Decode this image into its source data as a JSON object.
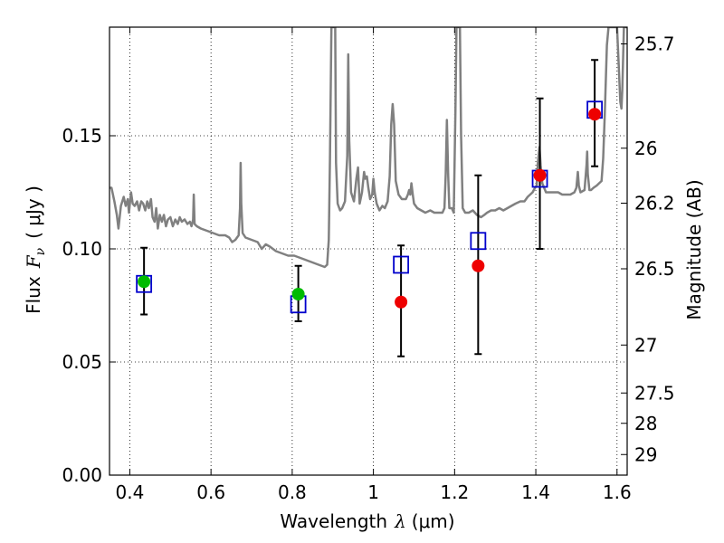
{
  "chart_data": {
    "type": "scatter",
    "xlabel": "Wavelength",
    "xlabel_symbol": "λ",
    "xlabel_unit": "(μm)",
    "ylabel": "Flux",
    "ylabel_symbol": "F",
    "ylabel_sub": "ν",
    "ylabel_unit": "( μJy )",
    "y2label": "Magnitude (AB)",
    "xlim": [
      0.35,
      1.625
    ],
    "ylim": [
      0.0,
      0.198
    ],
    "grid": true,
    "x_ticks": [
      0.4,
      0.6,
      0.8,
      1.0,
      1.2,
      1.4,
      1.6
    ],
    "x_tick_labels": [
      "0.4",
      "0.6",
      "0.8",
      "1",
      "1.2",
      "1.4",
      "1.6"
    ],
    "y_ticks": [
      0.0,
      0.05,
      0.1,
      0.15
    ],
    "y_tick_labels": [
      "0.00",
      "0.05",
      "0.10",
      "0.15"
    ],
    "y2_ticks": [
      {
        "label": "25.7",
        "flux": 0.1906
      },
      {
        "label": "26",
        "flux": 0.1445
      },
      {
        "label": "26.2",
        "flux": 0.1202
      },
      {
        "label": "26.5",
        "flux": 0.0912
      },
      {
        "label": "27",
        "flux": 0.0575
      },
      {
        "label": "27.5",
        "flux": 0.0363
      },
      {
        "label": "28",
        "flux": 0.0229
      },
      {
        "label": "29",
        "flux": 0.0091
      }
    ],
    "colors": {
      "model": "#808080",
      "observed": "#0000cc",
      "green": "#00bb00",
      "red": "#ee0000",
      "errorbar": "#000000"
    },
    "observed_squares": [
      {
        "x": 0.435,
        "y": 0.0845
      },
      {
        "x": 0.815,
        "y": 0.0755
      },
      {
        "x": 1.068,
        "y": 0.093
      },
      {
        "x": 1.258,
        "y": 0.1035
      },
      {
        "x": 1.41,
        "y": 0.131
      },
      {
        "x": 1.545,
        "y": 0.1615
      }
    ],
    "green_points": [
      {
        "x": 0.435,
        "y": 0.0855
      },
      {
        "x": 0.815,
        "y": 0.08
      }
    ],
    "red_points": [
      {
        "x": 1.068,
        "y": 0.0765
      },
      {
        "x": 1.258,
        "y": 0.0925
      },
      {
        "x": 1.41,
        "y": 0.1325
      },
      {
        "x": 1.545,
        "y": 0.1595
      }
    ],
    "error_bars": [
      {
        "x": 0.435,
        "low": 0.071,
        "high": 0.1005
      },
      {
        "x": 0.815,
        "low": 0.068,
        "high": 0.0925
      },
      {
        "x": 1.068,
        "low": 0.0525,
        "high": 0.1015
      },
      {
        "x": 1.258,
        "low": 0.0535,
        "high": 0.1325
      },
      {
        "x": 1.41,
        "low": 0.1,
        "high": 0.1665
      },
      {
        "x": 1.545,
        "low": 0.1365,
        "high": 0.1835
      }
    ],
    "model_spectrum": [
      [
        0.35,
        0.127
      ],
      [
        0.355,
        0.127
      ],
      [
        0.362,
        0.121
      ],
      [
        0.368,
        0.115
      ],
      [
        0.372,
        0.109
      ],
      [
        0.378,
        0.119
      ],
      [
        0.385,
        0.123
      ],
      [
        0.39,
        0.119
      ],
      [
        0.395,
        0.122
      ],
      [
        0.398,
        0.116
      ],
      [
        0.403,
        0.125
      ],
      [
        0.407,
        0.12
      ],
      [
        0.412,
        0.119
      ],
      [
        0.418,
        0.121
      ],
      [
        0.423,
        0.117
      ],
      [
        0.428,
        0.121
      ],
      [
        0.433,
        0.12
      ],
      [
        0.438,
        0.117
      ],
      [
        0.443,
        0.121
      ],
      [
        0.447,
        0.118
      ],
      [
        0.452,
        0.122
      ],
      [
        0.456,
        0.114
      ],
      [
        0.461,
        0.112
      ],
      [
        0.465,
        0.118
      ],
      [
        0.469,
        0.109
      ],
      [
        0.474,
        0.115
      ],
      [
        0.479,
        0.112
      ],
      [
        0.484,
        0.115
      ],
      [
        0.489,
        0.11
      ],
      [
        0.494,
        0.113
      ],
      [
        0.5,
        0.114
      ],
      [
        0.506,
        0.11
      ],
      [
        0.512,
        0.113
      ],
      [
        0.518,
        0.111
      ],
      [
        0.523,
        0.114
      ],
      [
        0.528,
        0.112
      ],
      [
        0.535,
        0.113
      ],
      [
        0.542,
        0.111
      ],
      [
        0.548,
        0.112
      ],
      [
        0.552,
        0.11
      ],
      [
        0.556,
        0.113
      ],
      [
        0.5575,
        0.124
      ],
      [
        0.5595,
        0.111
      ],
      [
        0.565,
        0.11
      ],
      [
        0.575,
        0.109
      ],
      [
        0.59,
        0.108
      ],
      [
        0.605,
        0.107
      ],
      [
        0.62,
        0.106
      ],
      [
        0.635,
        0.106
      ],
      [
        0.645,
        0.105
      ],
      [
        0.652,
        0.103
      ],
      [
        0.66,
        0.104
      ],
      [
        0.668,
        0.106
      ],
      [
        0.6715,
        0.118
      ],
      [
        0.673,
        0.138
      ],
      [
        0.6745,
        0.12
      ],
      [
        0.678,
        0.107
      ],
      [
        0.685,
        0.105
      ],
      [
        0.7,
        0.104
      ],
      [
        0.715,
        0.103
      ],
      [
        0.725,
        0.1
      ],
      [
        0.735,
        0.102
      ],
      [
        0.745,
        0.101
      ],
      [
        0.76,
        0.099
      ],
      [
        0.775,
        0.098
      ],
      [
        0.79,
        0.097
      ],
      [
        0.805,
        0.097
      ],
      [
        0.82,
        0.096
      ],
      [
        0.835,
        0.095
      ],
      [
        0.85,
        0.094
      ],
      [
        0.865,
        0.093
      ],
      [
        0.88,
        0.092
      ],
      [
        0.886,
        0.093
      ],
      [
        0.89,
        0.104
      ],
      [
        0.893,
        0.14
      ],
      [
        0.8965,
        0.198
      ],
      [
        0.906,
        0.198
      ],
      [
        0.908,
        0.138
      ],
      [
        0.912,
        0.12
      ],
      [
        0.918,
        0.117
      ],
      [
        0.923,
        0.118
      ],
      [
        0.93,
        0.121
      ],
      [
        0.9355,
        0.141
      ],
      [
        0.938,
        0.186
      ],
      [
        0.9405,
        0.148
      ],
      [
        0.945,
        0.125
      ],
      [
        0.952,
        0.121
      ],
      [
        0.958,
        0.131
      ],
      [
        0.962,
        0.136
      ],
      [
        0.966,
        0.12
      ],
      [
        0.972,
        0.125
      ],
      [
        0.977,
        0.134
      ],
      [
        0.98,
        0.131
      ],
      [
        0.984,
        0.132
      ],
      [
        0.9875,
        0.127
      ],
      [
        0.992,
        0.122
      ],
      [
        0.997,
        0.124
      ],
      [
        1.0,
        0.131
      ],
      [
        1.003,
        0.125
      ],
      [
        1.008,
        0.12
      ],
      [
        1.015,
        0.117
      ],
      [
        1.022,
        0.119
      ],
      [
        1.028,
        0.118
      ],
      [
        1.035,
        0.121
      ],
      [
        1.04,
        0.132
      ],
      [
        1.044,
        0.155
      ],
      [
        1.0475,
        0.164
      ],
      [
        1.051,
        0.155
      ],
      [
        1.055,
        0.13
      ],
      [
        1.062,
        0.124
      ],
      [
        1.07,
        0.122
      ],
      [
        1.08,
        0.122
      ],
      [
        1.085,
        0.124
      ],
      [
        1.088,
        0.126
      ],
      [
        1.091,
        0.124
      ],
      [
        1.0935,
        0.129
      ],
      [
        1.097,
        0.124
      ],
      [
        1.1,
        0.12
      ],
      [
        1.108,
        0.118
      ],
      [
        1.118,
        0.117
      ],
      [
        1.128,
        0.116
      ],
      [
        1.14,
        0.117
      ],
      [
        1.15,
        0.116
      ],
      [
        1.16,
        0.116
      ],
      [
        1.17,
        0.116
      ],
      [
        1.175,
        0.118
      ],
      [
        1.178,
        0.133
      ],
      [
        1.181,
        0.157
      ],
      [
        1.184,
        0.133
      ],
      [
        1.187,
        0.118
      ],
      [
        1.193,
        0.118
      ],
      [
        1.198,
        0.116
      ],
      [
        1.202,
        0.16
      ],
      [
        1.2045,
        0.198
      ],
      [
        1.213,
        0.198
      ],
      [
        1.216,
        0.15
      ],
      [
        1.22,
        0.118
      ],
      [
        1.226,
        0.116
      ],
      [
        1.235,
        0.116
      ],
      [
        1.245,
        0.117
      ],
      [
        1.255,
        0.115
      ],
      [
        1.265,
        0.114
      ],
      [
        1.273,
        0.115
      ],
      [
        1.28,
        0.116
      ],
      [
        1.29,
        0.117
      ],
      [
        1.3,
        0.117
      ],
      [
        1.31,
        0.118
      ],
      [
        1.32,
        0.117
      ],
      [
        1.33,
        0.118
      ],
      [
        1.34,
        0.119
      ],
      [
        1.35,
        0.12
      ],
      [
        1.362,
        0.121
      ],
      [
        1.372,
        0.121
      ],
      [
        1.38,
        0.123
      ],
      [
        1.392,
        0.125
      ],
      [
        1.398,
        0.127
      ],
      [
        1.402,
        0.128
      ],
      [
        1.405,
        0.138
      ],
      [
        1.409,
        0.145
      ],
      [
        1.412,
        0.137
      ],
      [
        1.416,
        0.129
      ],
      [
        1.425,
        0.125
      ],
      [
        1.435,
        0.125
      ],
      [
        1.445,
        0.125
      ],
      [
        1.455,
        0.125
      ],
      [
        1.465,
        0.124
      ],
      [
        1.475,
        0.124
      ],
      [
        1.485,
        0.124
      ],
      [
        1.495,
        0.125
      ],
      [
        1.5,
        0.127
      ],
      [
        1.5035,
        0.134
      ],
      [
        1.506,
        0.128
      ],
      [
        1.51,
        0.125
      ],
      [
        1.52,
        0.126
      ],
      [
        1.525,
        0.137
      ],
      [
        1.5265,
        0.143
      ],
      [
        1.528,
        0.133
      ],
      [
        1.532,
        0.126
      ],
      [
        1.536,
        0.126
      ],
      [
        1.542,
        0.127
      ],
      [
        1.55,
        0.128
      ],
      [
        1.556,
        0.129
      ],
      [
        1.562,
        0.13
      ],
      [
        1.566,
        0.14
      ],
      [
        1.57,
        0.16
      ],
      [
        1.575,
        0.19
      ],
      [
        1.579,
        0.198
      ],
      [
        1.6,
        0.198
      ],
      [
        1.6045,
        0.18
      ],
      [
        1.608,
        0.165
      ],
      [
        1.611,
        0.162
      ],
      [
        1.613,
        0.17
      ],
      [
        1.615,
        0.184
      ],
      [
        1.617,
        0.198
      ],
      [
        1.625,
        0.198
      ]
    ]
  }
}
